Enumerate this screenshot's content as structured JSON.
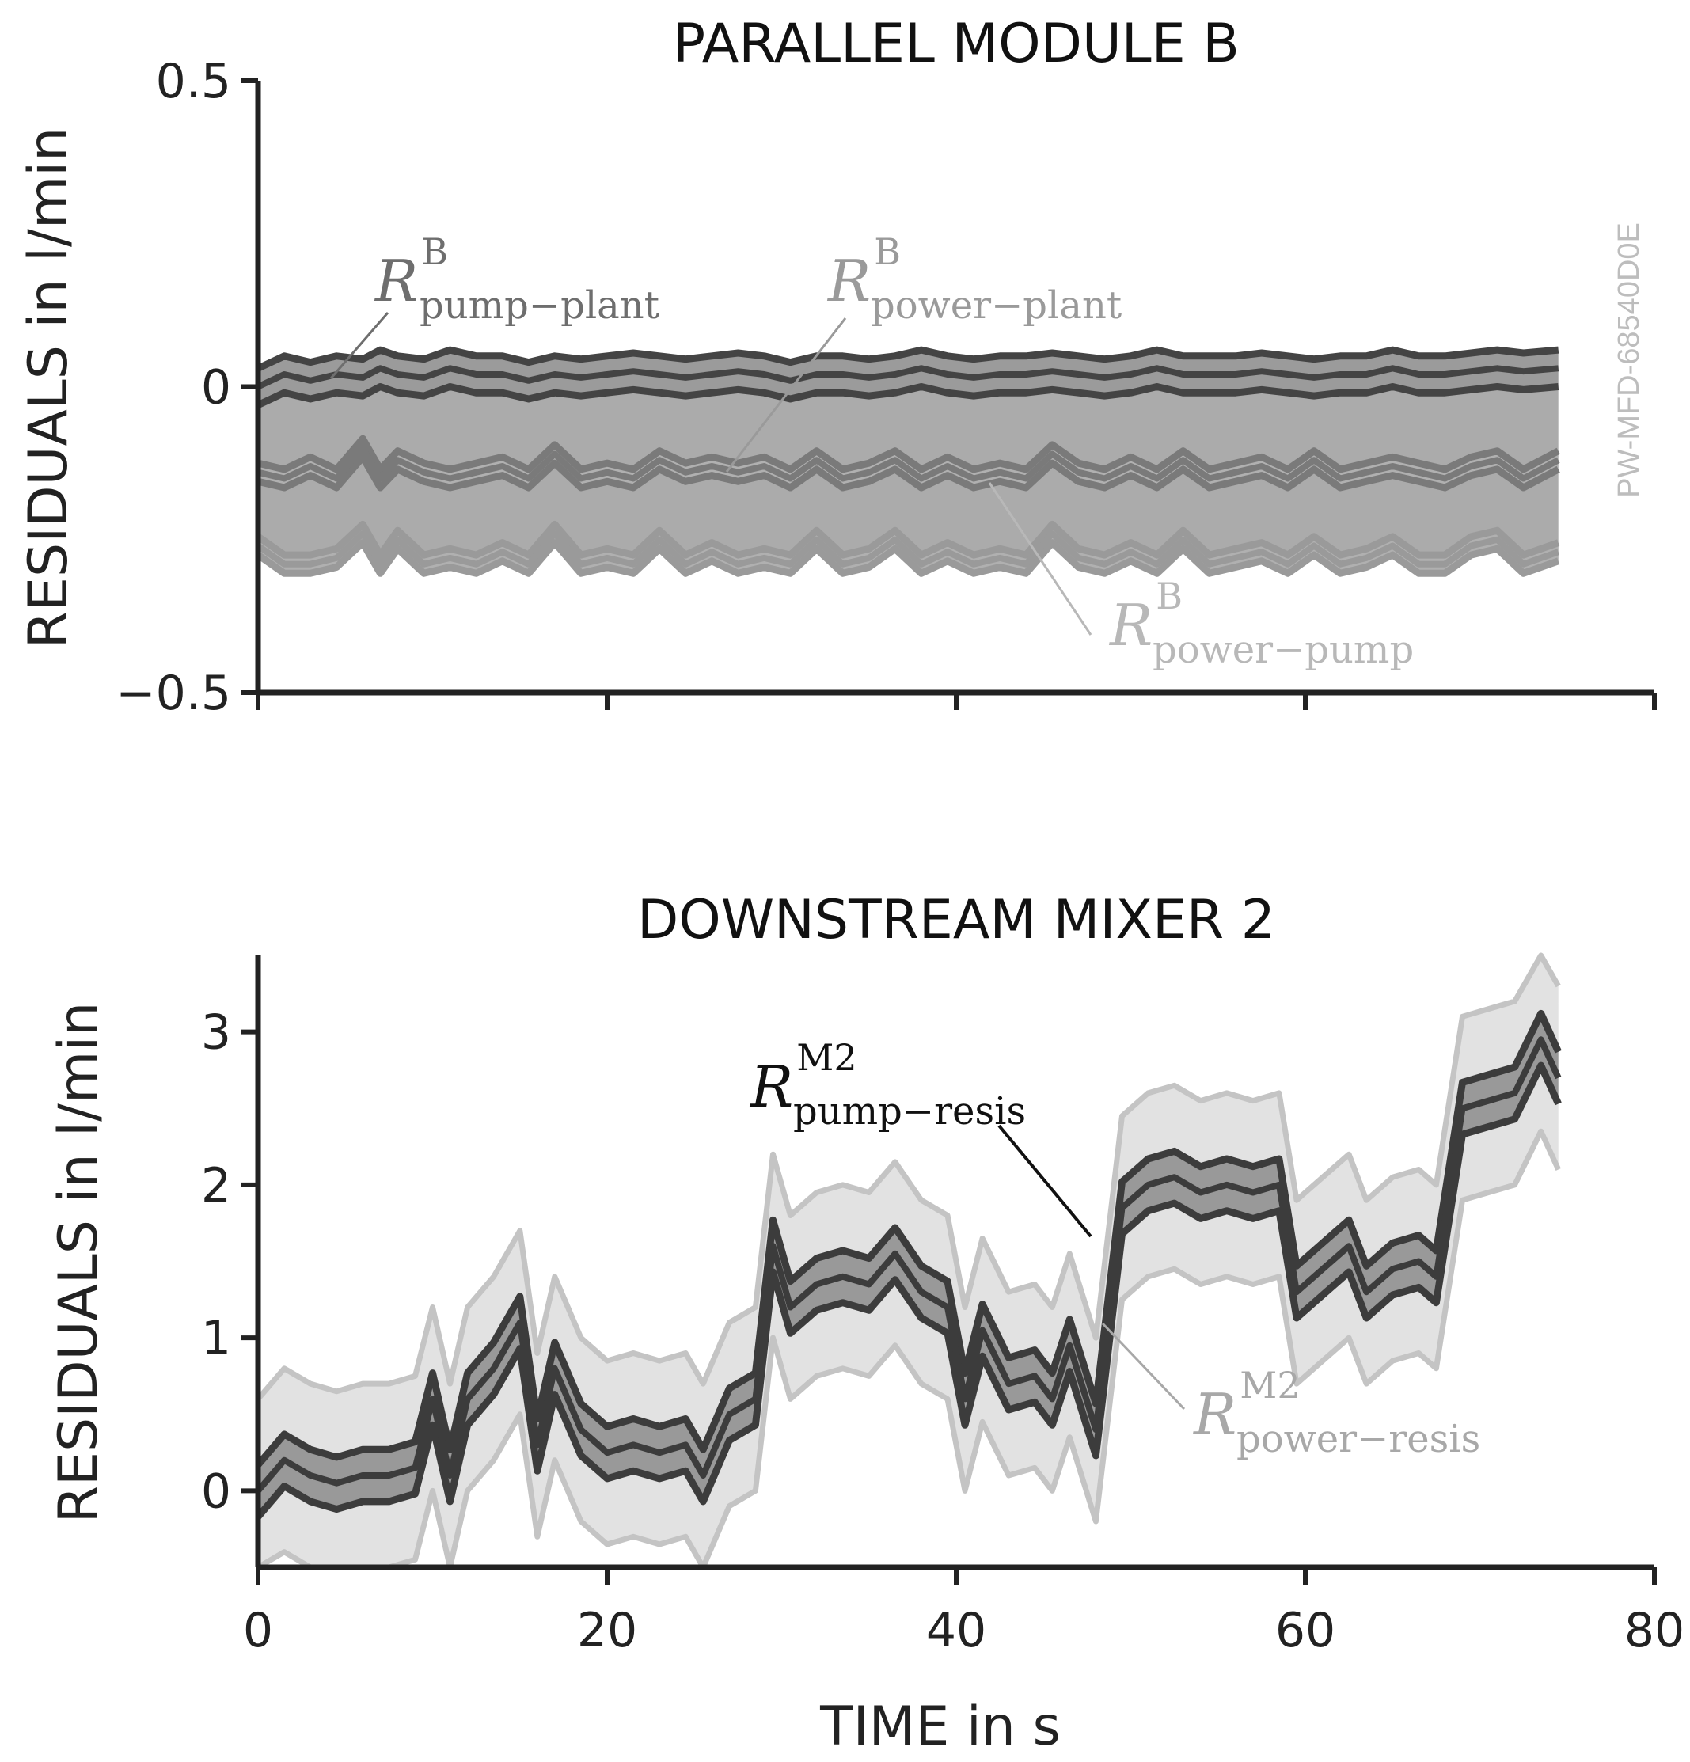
{
  "chart_data": [
    {
      "type": "line",
      "title": "PARALLEL MODULE B",
      "xlabel": "",
      "ylabel": "RESIDUALS in l/min",
      "xlim": [
        0,
        80
      ],
      "ylim": [
        -0.5,
        0.5
      ],
      "yticks": [
        -0.5,
        0,
        0.5
      ],
      "ytick_labels": [
        "−0.5",
        "0",
        "0.5"
      ],
      "xticks": [
        0,
        20,
        40,
        60,
        80
      ],
      "show_x_tick_labels": false,
      "watermark": "PW-MFD-68540D0E",
      "x": [
        0,
        1.5,
        3,
        4.5,
        6,
        7,
        8,
        9.5,
        11,
        12.5,
        14,
        15.5,
        17,
        18.5,
        20,
        21.5,
        23,
        24.5,
        26,
        27.5,
        29,
        30.5,
        32,
        33.5,
        35,
        36.5,
        38,
        39.5,
        41,
        42.5,
        44,
        45.5,
        47,
        48.5,
        50,
        51.5,
        53,
        54.5,
        56,
        57.5,
        59,
        60.5,
        62,
        63.5,
        65,
        66.5,
        68,
        69.5,
        71,
        72.5,
        74.5
      ],
      "series": [
        {
          "name": "R pump-plant",
          "color": "#444444",
          "values": [
            0.0,
            0.02,
            0.01,
            0.02,
            0.015,
            0.03,
            0.02,
            0.015,
            0.03,
            0.02,
            0.02,
            0.01,
            0.02,
            0.015,
            0.02,
            0.025,
            0.02,
            0.015,
            0.02,
            0.025,
            0.02,
            0.01,
            0.02,
            0.02,
            0.015,
            0.02,
            0.03,
            0.02,
            0.015,
            0.02,
            0.02,
            0.025,
            0.02,
            0.015,
            0.02,
            0.03,
            0.02,
            0.02,
            0.02,
            0.025,
            0.02,
            0.015,
            0.02,
            0.02,
            0.03,
            0.02,
            0.02,
            0.025,
            0.03,
            0.025,
            0.03
          ],
          "band": 0.03
        },
        {
          "name": "R power-plant",
          "color": "#7a7a7a",
          "values": [
            -0.14,
            -0.15,
            -0.13,
            -0.15,
            -0.1,
            -0.15,
            -0.12,
            -0.14,
            -0.15,
            -0.14,
            -0.13,
            -0.15,
            -0.11,
            -0.15,
            -0.14,
            -0.15,
            -0.12,
            -0.14,
            -0.13,
            -0.14,
            -0.13,
            -0.15,
            -0.12,
            -0.15,
            -0.14,
            -0.12,
            -0.15,
            -0.13,
            -0.15,
            -0.14,
            -0.15,
            -0.11,
            -0.14,
            -0.15,
            -0.13,
            -0.15,
            -0.12,
            -0.15,
            -0.14,
            -0.13,
            -0.15,
            -0.12,
            -0.15,
            -0.14,
            -0.13,
            -0.14,
            -0.15,
            -0.13,
            -0.12,
            -0.15,
            -0.12
          ],
          "band": 0.015
        },
        {
          "name": "R power-pump",
          "color": "#9a9a9a",
          "values": [
            -0.26,
            -0.29,
            -0.29,
            -0.28,
            -0.24,
            -0.29,
            -0.25,
            -0.29,
            -0.28,
            -0.29,
            -0.27,
            -0.29,
            -0.24,
            -0.29,
            -0.28,
            -0.29,
            -0.25,
            -0.29,
            -0.27,
            -0.29,
            -0.28,
            -0.29,
            -0.25,
            -0.29,
            -0.28,
            -0.25,
            -0.29,
            -0.27,
            -0.29,
            -0.28,
            -0.29,
            -0.24,
            -0.28,
            -0.29,
            -0.27,
            -0.29,
            -0.25,
            -0.29,
            -0.28,
            -0.27,
            -0.29,
            -0.26,
            -0.29,
            -0.28,
            -0.26,
            -0.29,
            -0.29,
            -0.26,
            -0.25,
            -0.29,
            -0.27
          ],
          "band": 0.015
        }
      ],
      "annotations": [
        {
          "base": "R",
          "sup": "B",
          "sub": "pump−plant",
          "color": "#6e6e6e"
        },
        {
          "base": "R",
          "sup": "B",
          "sub": "power−plant",
          "color": "#9a9a9a"
        },
        {
          "base": "R",
          "sup": "B",
          "sub": "power−pump",
          "color": "#b8b8b8"
        }
      ]
    },
    {
      "type": "line",
      "title": "DOWNSTREAM MIXER 2",
      "xlabel": "TIME in s",
      "ylabel": "RESIDUALS in l/min",
      "xlim": [
        0,
        80
      ],
      "ylim": [
        -0.5,
        3.5
      ],
      "yticks": [
        0,
        1,
        2,
        3
      ],
      "ytick_labels": [
        "0",
        "1",
        "2",
        "3"
      ],
      "xticks": [
        0,
        20,
        40,
        60,
        80
      ],
      "xtick_labels": [
        "0",
        "20",
        "40",
        "60",
        "80"
      ],
      "x": [
        0,
        1.5,
        3,
        4.5,
        6,
        7.5,
        9,
        10,
        11,
        12,
        13.5,
        15,
        16,
        17,
        18.5,
        20,
        21.5,
        23,
        24.5,
        25.5,
        27,
        28.5,
        29.5,
        30.5,
        32,
        33.5,
        35,
        36.5,
        38,
        39.5,
        40.5,
        41.5,
        43,
        44.5,
        45.5,
        46.5,
        48,
        49.5,
        51,
        52.5,
        54,
        55.5,
        57,
        58.5,
        59.5,
        61,
        62.5,
        63.5,
        65,
        66.5,
        67.5,
        69,
        70.5,
        72,
        73.5,
        74.5
      ],
      "series": [
        {
          "name": "R pump-resis",
          "color": "#3c3c3c",
          "values": [
            0.0,
            0.2,
            0.1,
            0.05,
            0.1,
            0.1,
            0.15,
            0.6,
            0.1,
            0.6,
            0.8,
            1.1,
            0.3,
            0.8,
            0.4,
            0.25,
            0.3,
            0.25,
            0.3,
            0.1,
            0.5,
            0.6,
            1.6,
            1.2,
            1.35,
            1.4,
            1.35,
            1.55,
            1.3,
            1.2,
            0.6,
            1.05,
            0.7,
            0.75,
            0.6,
            0.95,
            0.4,
            1.85,
            2.0,
            2.05,
            1.95,
            2.0,
            1.95,
            2.0,
            1.3,
            1.45,
            1.6,
            1.3,
            1.45,
            1.5,
            1.4,
            2.5,
            2.55,
            2.6,
            2.95,
            2.7
          ],
          "band": 0.17
        },
        {
          "name": "R power-resis",
          "color": "#cccccc",
          "band_only": true,
          "values": [
            0.0,
            0.2,
            0.1,
            0.05,
            0.1,
            0.1,
            0.15,
            0.6,
            0.1,
            0.6,
            0.8,
            1.1,
            0.3,
            0.8,
            0.4,
            0.25,
            0.3,
            0.25,
            0.3,
            0.1,
            0.5,
            0.6,
            1.6,
            1.2,
            1.35,
            1.4,
            1.35,
            1.55,
            1.3,
            1.2,
            0.6,
            1.05,
            0.7,
            0.75,
            0.6,
            0.95,
            0.4,
            1.85,
            2.0,
            2.05,
            1.95,
            2.0,
            1.95,
            2.0,
            1.3,
            1.45,
            1.6,
            1.3,
            1.45,
            1.5,
            1.4,
            2.5,
            2.55,
            2.6,
            2.95,
            2.7
          ],
          "band": 0.6
        }
      ],
      "annotations": [
        {
          "base": "R",
          "sup": "M2",
          "sub": "pump−resis",
          "color": "#111111"
        },
        {
          "base": "R",
          "sup": "M2",
          "sub": "power−resis",
          "color": "#a8a8a8"
        }
      ]
    }
  ]
}
